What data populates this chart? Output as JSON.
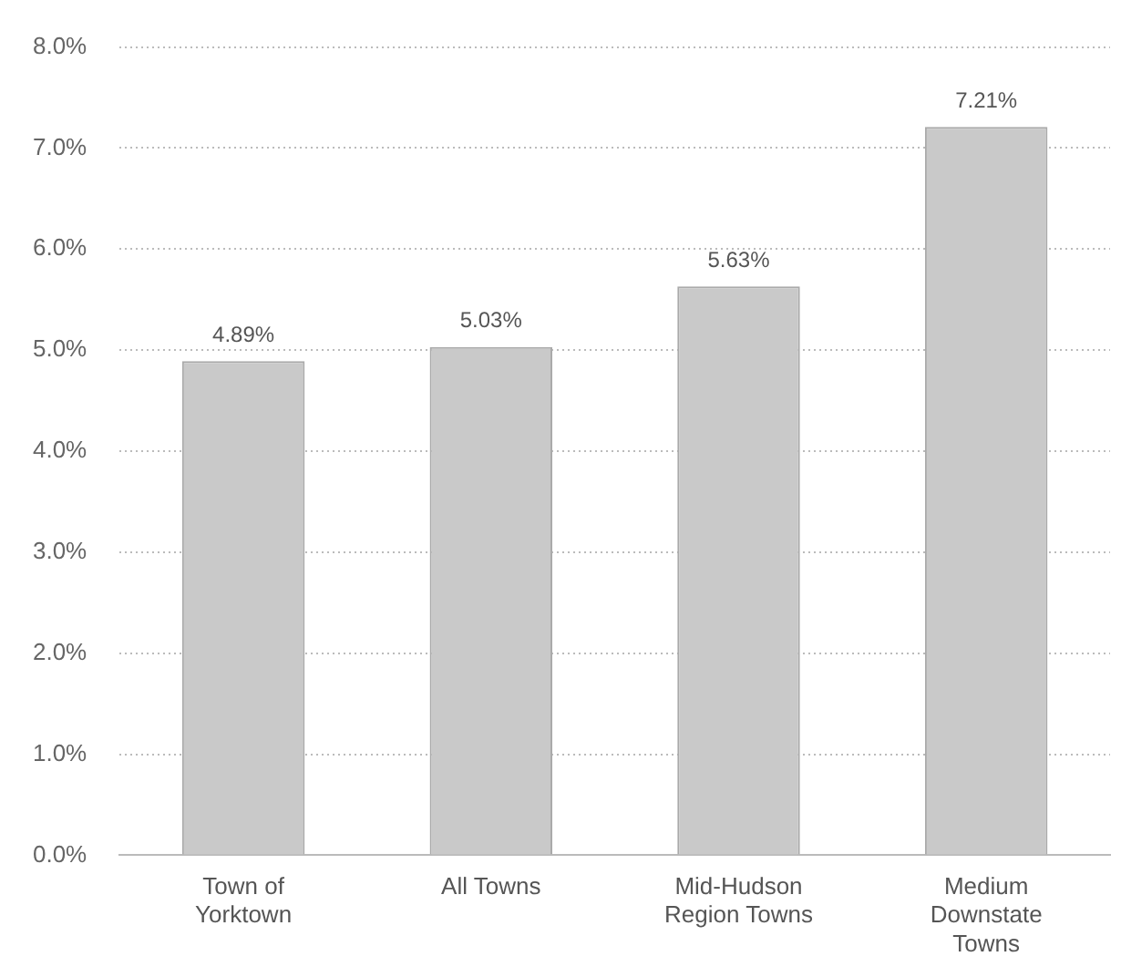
{
  "chart_data": {
    "type": "bar",
    "categories": [
      "Town of Yorktown",
      "All Towns",
      "Mid-Hudson Region Towns",
      "Medium Downstate Towns"
    ],
    "values": [
      4.89,
      5.03,
      5.63,
      7.21
    ],
    "value_labels": [
      "4.89%",
      "5.03%",
      "5.63%",
      "7.21%"
    ],
    "color": "#c9c9c9",
    "ylim": [
      0,
      8
    ],
    "yticks": [
      {
        "value": 0,
        "label": "0.0%"
      },
      {
        "value": 1,
        "label": "1.0%"
      },
      {
        "value": 2,
        "label": "2.0%"
      },
      {
        "value": 3,
        "label": "3.0%"
      },
      {
        "value": 4,
        "label": "4.0%"
      },
      {
        "value": 5,
        "label": "5.0%"
      },
      {
        "value": 6,
        "label": "6.0%"
      },
      {
        "value": 7,
        "label": "7.0%"
      },
      {
        "value": 8,
        "label": "8.0%"
      }
    ],
    "grid": "y"
  }
}
